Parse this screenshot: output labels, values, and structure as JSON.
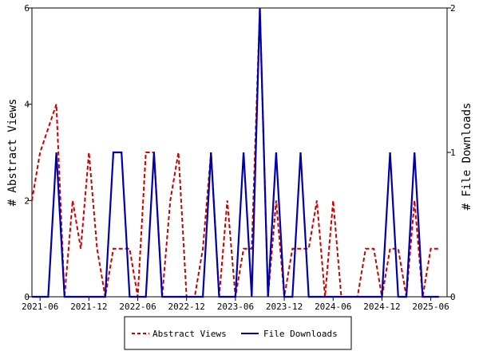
{
  "chart_data": {
    "type": "line",
    "x_axis": {
      "type": "date",
      "range": [
        "2021-05",
        "2025-08"
      ],
      "ticks": [
        "2021-06",
        "2021-12",
        "2022-06",
        "2022-12",
        "2023-06",
        "2023-12",
        "2024-06",
        "2024-12",
        "2025-06"
      ]
    },
    "y_left": {
      "label": "# Abstract Views",
      "range": [
        0,
        6
      ],
      "ticks": [
        "0",
        "2",
        "4",
        "6"
      ]
    },
    "y_right": {
      "label": "# File Downloads",
      "range": [
        0,
        2
      ],
      "ticks": [
        "0",
        "1",
        "2"
      ]
    },
    "grid": false,
    "legend_position": "bottom",
    "colors": {
      "abstract_views": "#cc0000",
      "file_downloads": "#0000aa"
    },
    "series": [
      {
        "name": "Abstract Views",
        "axis": "left",
        "style": "dashed",
        "color": "#cc0000",
        "points": [
          [
            "2021-05",
            2
          ],
          [
            "2021-06",
            3
          ],
          [
            "2021-07",
            3.5
          ],
          [
            "2021-08",
            4
          ],
          [
            "2021-09",
            0
          ],
          [
            "2021-10",
            2
          ],
          [
            "2021-11",
            1
          ],
          [
            "2021-12",
            3
          ],
          [
            "2022-01",
            1
          ],
          [
            "2022-02",
            0
          ],
          [
            "2022-03",
            1
          ],
          [
            "2022-04",
            1
          ],
          [
            "2022-05",
            1
          ],
          [
            "2022-06",
            0
          ],
          [
            "2022-07",
            3
          ],
          [
            "2022-08",
            3
          ],
          [
            "2022-09",
            0
          ],
          [
            "2022-10",
            2
          ],
          [
            "2022-11",
            3
          ],
          [
            "2022-12",
            0
          ],
          [
            "2023-01",
            0
          ],
          [
            "2023-02",
            1
          ],
          [
            "2023-03",
            3
          ],
          [
            "2023-04",
            0
          ],
          [
            "2023-05",
            2
          ],
          [
            "2023-06",
            0
          ],
          [
            "2023-07",
            1
          ],
          [
            "2023-08",
            1
          ],
          [
            "2023-09",
            6
          ],
          [
            "2023-10",
            0
          ],
          [
            "2023-11",
            2
          ],
          [
            "2023-12",
            0
          ],
          [
            "2024-01",
            1
          ],
          [
            "2024-02",
            1
          ],
          [
            "2024-03",
            1
          ],
          [
            "2024-04",
            2
          ],
          [
            "2024-05",
            0
          ],
          [
            "2024-06",
            2
          ],
          [
            "2024-07",
            0
          ],
          [
            "2024-08",
            0
          ],
          [
            "2024-09",
            0
          ],
          [
            "2024-10",
            1
          ],
          [
            "2024-11",
            1
          ],
          [
            "2024-12",
            0
          ],
          [
            "2025-01",
            1
          ],
          [
            "2025-02",
            1
          ],
          [
            "2025-03",
            0
          ],
          [
            "2025-04",
            2
          ],
          [
            "2025-05",
            0
          ],
          [
            "2025-06",
            1
          ],
          [
            "2025-07",
            1
          ]
        ]
      },
      {
        "name": "File Downloads",
        "axis": "right",
        "style": "solid",
        "color": "#0000aa",
        "points": [
          [
            "2021-05",
            0
          ],
          [
            "2021-06",
            0
          ],
          [
            "2021-07",
            0
          ],
          [
            "2021-08",
            1
          ],
          [
            "2021-09",
            0
          ],
          [
            "2021-10",
            0
          ],
          [
            "2021-11",
            0
          ],
          [
            "2021-12",
            0
          ],
          [
            "2022-01",
            0
          ],
          [
            "2022-02",
            0
          ],
          [
            "2022-03",
            1
          ],
          [
            "2022-04",
            1
          ],
          [
            "2022-05",
            0
          ],
          [
            "2022-06",
            0
          ],
          [
            "2022-07",
            0
          ],
          [
            "2022-08",
            1
          ],
          [
            "2022-09",
            0
          ],
          [
            "2022-10",
            0
          ],
          [
            "2022-11",
            0
          ],
          [
            "2022-12",
            0
          ],
          [
            "2023-01",
            0
          ],
          [
            "2023-02",
            0
          ],
          [
            "2023-03",
            1
          ],
          [
            "2023-04",
            0
          ],
          [
            "2023-05",
            0
          ],
          [
            "2023-06",
            0
          ],
          [
            "2023-07",
            1
          ],
          [
            "2023-08",
            0
          ],
          [
            "2023-09",
            2
          ],
          [
            "2023-10",
            0
          ],
          [
            "2023-11",
            1
          ],
          [
            "2023-12",
            0
          ],
          [
            "2024-01",
            0
          ],
          [
            "2024-02",
            1
          ],
          [
            "2024-03",
            0
          ],
          [
            "2024-04",
            0
          ],
          [
            "2024-05",
            0
          ],
          [
            "2024-06",
            0
          ],
          [
            "2024-07",
            0
          ],
          [
            "2024-08",
            0
          ],
          [
            "2024-09",
            0
          ],
          [
            "2024-10",
            0
          ],
          [
            "2024-11",
            0
          ],
          [
            "2024-12",
            0
          ],
          [
            "2025-01",
            1
          ],
          [
            "2025-02",
            0
          ],
          [
            "2025-03",
            0
          ],
          [
            "2025-04",
            1
          ],
          [
            "2025-05",
            0
          ],
          [
            "2025-06",
            0
          ],
          [
            "2025-07",
            0
          ]
        ]
      }
    ]
  }
}
